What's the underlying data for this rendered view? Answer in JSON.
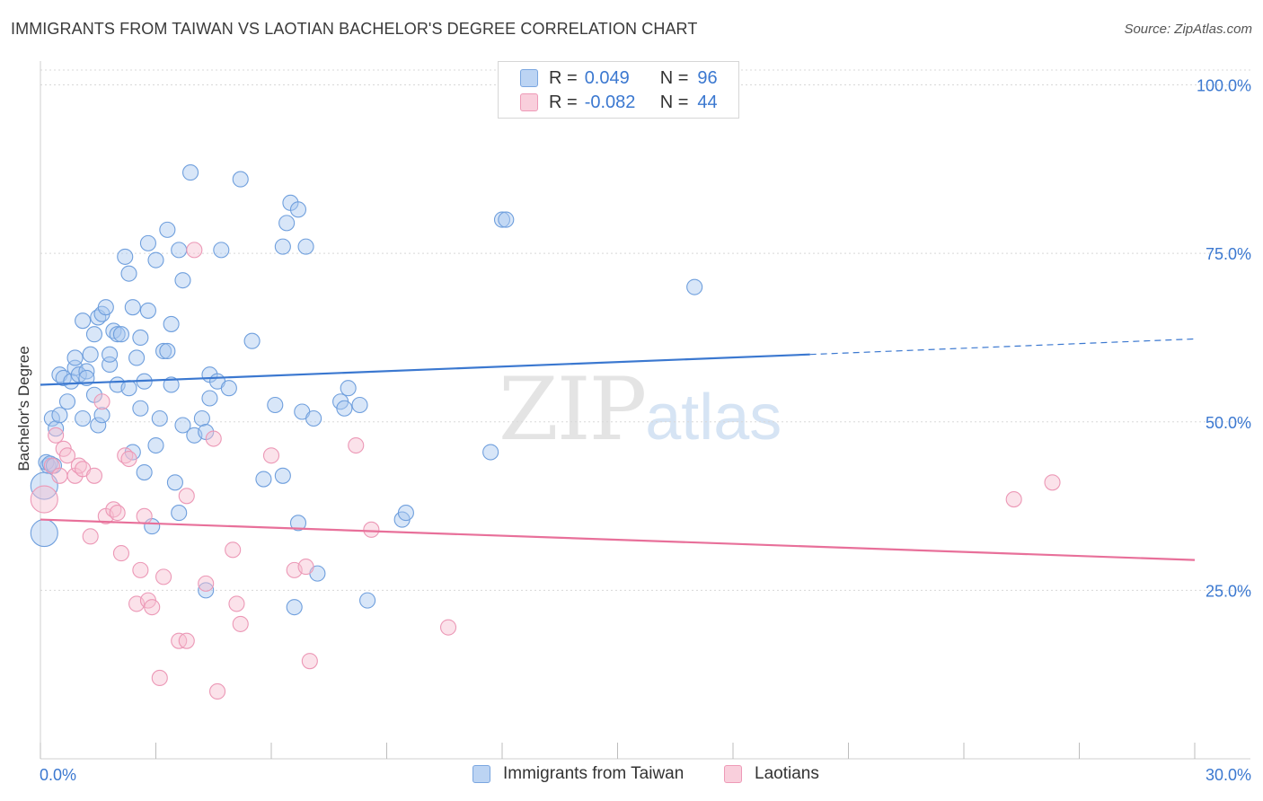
{
  "title": "IMMIGRANTS FROM TAIWAN VS LAOTIAN BACHELOR'S DEGREE CORRELATION CHART",
  "source": "Source: ZipAtlas.com",
  "watermark": {
    "zip": "ZIP",
    "atlas": "atlas"
  },
  "colors": {
    "blue": "#3b78d0",
    "blue_fill": "#a9c8f0",
    "pink": "#e8709a",
    "pink_fill": "#f6bfd1",
    "grid": "#d8d8d8"
  },
  "legend": {
    "rows": [
      {
        "label": "R =",
        "r": "0.049",
        "n_label": "N =",
        "n": "96"
      },
      {
        "label": "R =",
        "r": "-0.082",
        "n_label": "N =",
        "n": "44"
      }
    ]
  },
  "chart_data": {
    "type": "scatter",
    "title": "IMMIGRANTS FROM TAIWAN VS LAOTIAN BACHELOR'S DEGREE CORRELATION CHART",
    "xlabel": "",
    "ylabel": "Bachelor's Degree",
    "xlim": [
      0,
      30
    ],
    "ylim": [
      0,
      103
    ],
    "x_tick_labels": [
      "0.0%",
      "30.0%"
    ],
    "y_ticks": [
      25,
      50,
      75,
      100
    ],
    "y_tick_labels": [
      "25.0%",
      "50.0%",
      "75.0%",
      "100.0%"
    ],
    "series": [
      {
        "name": "Immigrants from Taiwan",
        "color": "#3b78d0",
        "trend": {
          "x0": 0,
          "y0": 55.5,
          "x1": 20,
          "y1": 60.0,
          "dash_to_x": 30,
          "dash_to_y": 62.3
        },
        "points": [
          [
            0.1,
            33.5
          ],
          [
            0.1,
            40.5
          ],
          [
            0.2,
            43.5
          ],
          [
            0.3,
            50.5
          ],
          [
            0.4,
            49.0
          ],
          [
            0.5,
            51.0
          ],
          [
            0.5,
            57.0
          ],
          [
            0.6,
            56.5
          ],
          [
            0.7,
            53.0
          ],
          [
            0.8,
            56.0
          ],
          [
            0.9,
            58.0
          ],
          [
            0.9,
            59.5
          ],
          [
            1.0,
            57.0
          ],
          [
            1.1,
            65.0
          ],
          [
            1.1,
            50.5
          ],
          [
            1.2,
            57.5
          ],
          [
            1.2,
            56.5
          ],
          [
            1.3,
            60.0
          ],
          [
            1.4,
            63.0
          ],
          [
            1.4,
            54.0
          ],
          [
            1.5,
            49.5
          ],
          [
            1.5,
            65.5
          ],
          [
            1.6,
            51.0
          ],
          [
            1.6,
            66.0
          ],
          [
            1.7,
            67.0
          ],
          [
            1.8,
            58.5
          ],
          [
            1.8,
            60.0
          ],
          [
            1.9,
            63.5
          ],
          [
            2.0,
            63.0
          ],
          [
            2.0,
            55.5
          ],
          [
            2.1,
            63.0
          ],
          [
            2.2,
            74.5
          ],
          [
            2.3,
            55.0
          ],
          [
            2.3,
            72.0
          ],
          [
            2.4,
            45.5
          ],
          [
            2.4,
            67.0
          ],
          [
            2.5,
            59.5
          ],
          [
            2.6,
            52.0
          ],
          [
            2.6,
            62.5
          ],
          [
            2.7,
            56.0
          ],
          [
            2.7,
            42.5
          ],
          [
            2.8,
            66.5
          ],
          [
            2.8,
            76.5
          ],
          [
            2.9,
            34.5
          ],
          [
            3.0,
            74.0
          ],
          [
            3.0,
            46.5
          ],
          [
            3.1,
            50.5
          ],
          [
            3.2,
            60.5
          ],
          [
            3.3,
            60.5
          ],
          [
            3.3,
            78.5
          ],
          [
            3.4,
            64.5
          ],
          [
            3.4,
            55.5
          ],
          [
            3.5,
            41.0
          ],
          [
            3.6,
            36.5
          ],
          [
            3.6,
            75.5
          ],
          [
            3.7,
            71.0
          ],
          [
            3.7,
            49.5
          ],
          [
            3.9,
            87.0
          ],
          [
            4.0,
            48.0
          ],
          [
            4.2,
            50.5
          ],
          [
            4.3,
            25.0
          ],
          [
            4.3,
            48.5
          ],
          [
            4.4,
            57.0
          ],
          [
            4.4,
            53.5
          ],
          [
            4.6,
            56.0
          ],
          [
            4.7,
            75.5
          ],
          [
            4.9,
            55.0
          ],
          [
            5.2,
            86.0
          ],
          [
            5.5,
            62.0
          ],
          [
            5.8,
            41.5
          ],
          [
            6.1,
            52.5
          ],
          [
            6.3,
            42.0
          ],
          [
            6.3,
            76.0
          ],
          [
            6.4,
            79.5
          ],
          [
            6.5,
            82.5
          ],
          [
            6.6,
            22.5
          ],
          [
            6.7,
            81.5
          ],
          [
            6.7,
            35.0
          ],
          [
            6.8,
            51.5
          ],
          [
            6.9,
            76.0
          ],
          [
            7.1,
            50.5
          ],
          [
            7.2,
            27.5
          ],
          [
            7.8,
            53.0
          ],
          [
            7.9,
            52.0
          ],
          [
            8.0,
            55.0
          ],
          [
            8.3,
            52.5
          ],
          [
            8.5,
            23.5
          ],
          [
            9.4,
            35.5
          ],
          [
            9.5,
            36.5
          ],
          [
            11.7,
            45.5
          ],
          [
            12.0,
            80.0
          ],
          [
            12.1,
            80.0
          ],
          [
            17.0,
            70.0
          ],
          [
            0.15,
            44.0
          ],
          [
            0.25,
            43.8
          ],
          [
            0.35,
            43.5
          ]
        ],
        "large_points": [
          [
            0.1,
            33.5
          ],
          [
            0.1,
            40.5
          ]
        ]
      },
      {
        "name": "Laotians",
        "color": "#e8709a",
        "trend": {
          "x0": 0,
          "y0": 35.5,
          "x1": 30,
          "y1": 29.5
        },
        "points": [
          [
            0.1,
            38.5
          ],
          [
            0.3,
            43.5
          ],
          [
            0.4,
            48.0
          ],
          [
            0.5,
            42.0
          ],
          [
            0.6,
            46.0
          ],
          [
            0.7,
            45.0
          ],
          [
            0.9,
            42.0
          ],
          [
            1.0,
            43.5
          ],
          [
            1.1,
            43.0
          ],
          [
            1.3,
            33.0
          ],
          [
            1.4,
            42.0
          ],
          [
            1.6,
            53.0
          ],
          [
            1.7,
            36.0
          ],
          [
            1.9,
            37.0
          ],
          [
            2.0,
            36.5
          ],
          [
            2.1,
            30.5
          ],
          [
            2.2,
            45.0
          ],
          [
            2.3,
            44.5
          ],
          [
            2.5,
            23.0
          ],
          [
            2.6,
            28.0
          ],
          [
            2.7,
            36.0
          ],
          [
            2.8,
            23.5
          ],
          [
            2.9,
            22.5
          ],
          [
            3.1,
            12.0
          ],
          [
            3.2,
            27.0
          ],
          [
            3.6,
            17.5
          ],
          [
            3.8,
            17.5
          ],
          [
            3.8,
            39.0
          ],
          [
            4.0,
            75.5
          ],
          [
            4.3,
            26.0
          ],
          [
            4.5,
            47.5
          ],
          [
            4.6,
            10.0
          ],
          [
            5.0,
            31.0
          ],
          [
            5.1,
            23.0
          ],
          [
            5.2,
            20.0
          ],
          [
            6.0,
            45.0
          ],
          [
            6.6,
            28.0
          ],
          [
            6.9,
            28.5
          ],
          [
            7.0,
            14.5
          ],
          [
            8.2,
            46.5
          ],
          [
            8.6,
            34.0
          ],
          [
            10.6,
            19.5
          ],
          [
            25.3,
            38.5
          ],
          [
            26.3,
            41.0
          ]
        ],
        "large_points": [
          [
            0.1,
            38.5
          ]
        ]
      }
    ]
  },
  "bottom_legend": [
    {
      "label": "Immigrants from Taiwan"
    },
    {
      "label": "Laotians"
    }
  ]
}
